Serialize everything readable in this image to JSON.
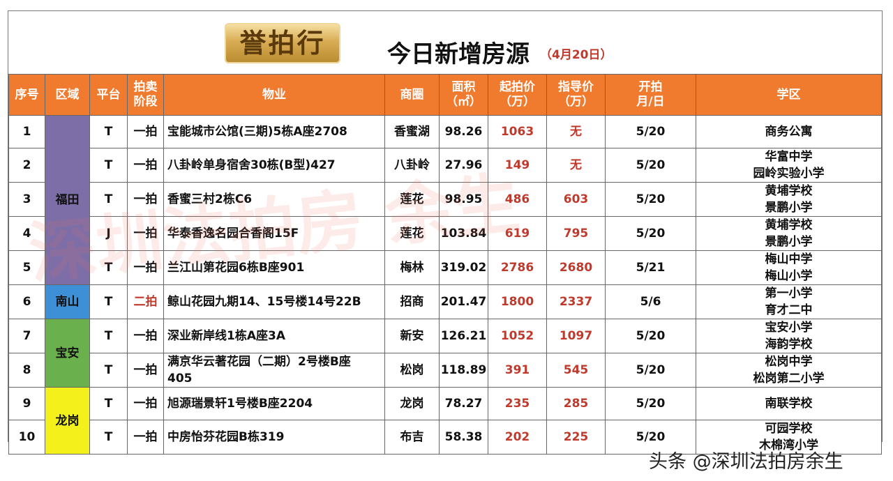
{
  "logo": {
    "text": "誉拍行"
  },
  "title": "今日新增房源",
  "subtitle": "（4月20日）",
  "columns": [
    {
      "line1": "序号",
      "line2": ""
    },
    {
      "line1": "区域",
      "line2": ""
    },
    {
      "line1": "平台",
      "line2": ""
    },
    {
      "line1": "拍卖",
      "line2": "阶段"
    },
    {
      "line1": "物业",
      "line2": ""
    },
    {
      "line1": "商圈",
      "line2": ""
    },
    {
      "line1": "面积",
      "line2": "（㎡）"
    },
    {
      "line1": "起拍价",
      "line2": "（万）"
    },
    {
      "line1": "指导价",
      "line2": "（万）"
    },
    {
      "line1": "开拍",
      "line2": "月/日"
    },
    {
      "line1": "学区",
      "line2": ""
    }
  ],
  "districts": [
    {
      "name": "福田",
      "color": "#7d6ea8"
    },
    {
      "name": "南山",
      "color": "#3d8fd6"
    },
    {
      "name": "宝安",
      "color": "#6ab04c"
    },
    {
      "name": "龙岗",
      "color": "#f4f01c"
    }
  ],
  "rows": [
    {
      "no": "1",
      "platform": "T",
      "stage": "一拍",
      "property": "宝能城市公馆(三期)5栋A座2708",
      "area_name": "香蜜湖",
      "area": "98.26",
      "start_price": "1063",
      "guide_price": "无",
      "date": "5/20",
      "school1": "商务公寓",
      "school2": ""
    },
    {
      "no": "2",
      "platform": "T",
      "stage": "一拍",
      "property": "八卦岭单身宿舍30栋(B型)427",
      "area_name": "八卦岭",
      "area": "27.96",
      "start_price": "149",
      "guide_price": "无",
      "date": "5/20",
      "school1": "华富中学",
      "school2": "园岭实验小学"
    },
    {
      "no": "3",
      "platform": "T",
      "stage": "一拍",
      "property": "香蜜三村2栋C6",
      "area_name": "莲花",
      "area": "98.95",
      "start_price": "486",
      "guide_price": "603",
      "date": "5/20",
      "school1": "黄埔学校",
      "school2": "景鹏小学"
    },
    {
      "no": "4",
      "platform": "J",
      "stage": "一拍",
      "property": "华泰香逸名园合香阁15F",
      "area_name": "莲花",
      "area": "103.84",
      "start_price": "619",
      "guide_price": "795",
      "date": "5/20",
      "school1": "黄埔学校",
      "school2": "景鹏小学"
    },
    {
      "no": "5",
      "platform": "T",
      "stage": "一拍",
      "property": "兰江山第花园6栋B座901",
      "area_name": "梅林",
      "area": "319.02",
      "start_price": "2786",
      "guide_price": "2680",
      "date": "5/21",
      "school1": "梅山中学",
      "school2": "梅山小学"
    },
    {
      "no": "6",
      "platform": "T",
      "stage": "二拍",
      "property": "鲸山花园九期14、15号楼14号22B",
      "area_name": "招商",
      "area": "201.47",
      "start_price": "1800",
      "guide_price": "2337",
      "date": "5/6",
      "school1": "第一小学",
      "school2": "育才二中"
    },
    {
      "no": "7",
      "platform": "T",
      "stage": "一拍",
      "property": "深业新岸线1栋A座3A",
      "area_name": "新安",
      "area": "126.21",
      "start_price": "1052",
      "guide_price": "1097",
      "date": "5/20",
      "school1": "宝安小学",
      "school2": "海韵学校"
    },
    {
      "no": "8",
      "platform": "T",
      "stage": "一拍",
      "property": "满京华云著花园（二期）2号楼B座",
      "property2": "405",
      "area_name": "松岗",
      "area": "118.89",
      "start_price": "391",
      "guide_price": "545",
      "date": "5/20",
      "school1": "松岗中学",
      "school2": "松岗第二小学"
    },
    {
      "no": "9",
      "platform": "T",
      "stage": "一拍",
      "property": "旭源瑞景轩1号楼B座2204",
      "area_name": "龙岗",
      "area": "78.27",
      "start_price": "235",
      "guide_price": "285",
      "date": "5/20",
      "school1": "南联学校",
      "school2": ""
    },
    {
      "no": "10",
      "platform": "T",
      "stage": "一拍",
      "property": "中房怡芬花园B栋319",
      "area_name": "布吉",
      "area": "58.38",
      "start_price": "202",
      "guide_price": "225",
      "date": "5/20",
      "school1": "可园学校",
      "school2": "木棉湾小学"
    }
  ],
  "watermark": {
    "text": "深圳法拍房 余生"
  },
  "footer": "头条 @深圳法拍房余生"
}
